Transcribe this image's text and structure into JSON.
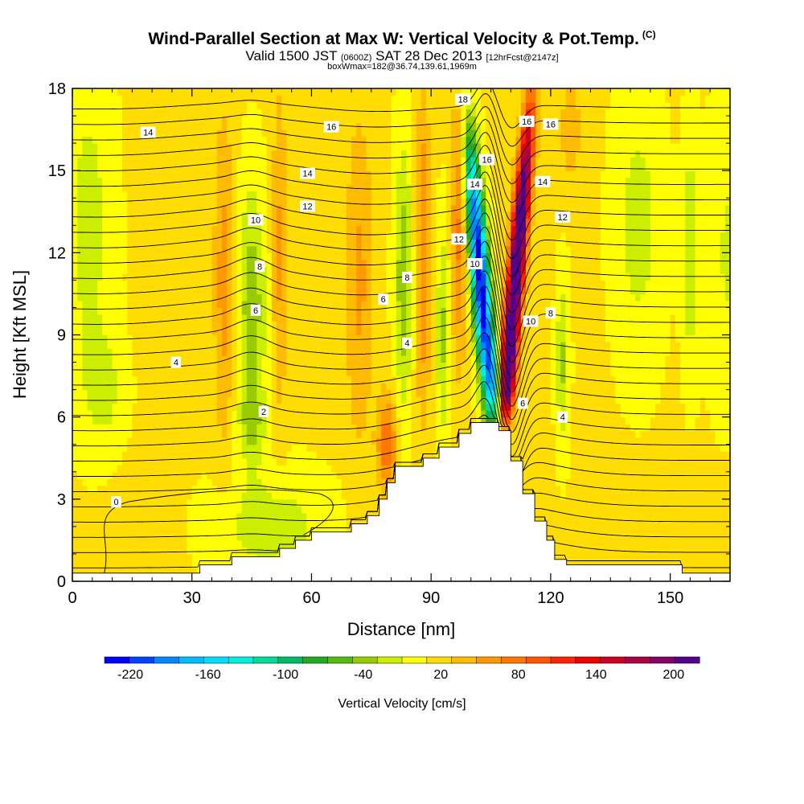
{
  "header": {
    "title": "Wind-Parallel Section at Max W: Vertical Velocity & Pot.Temp.",
    "copyright": "(C)",
    "valid_prefix": "Valid 1500 JST",
    "valid_utc": "(0600Z)",
    "valid_date": "SAT 28 Dec 2013",
    "forecast": "[12hrFcst@2147z]",
    "boxinfo": "boxWmax=182@36.74,139.61,1969m"
  },
  "chart_data": {
    "type": "heatmap",
    "xlabel": "Distance [nm]",
    "ylabel": "Height [Kft MSL]",
    "xlim": [
      0,
      165
    ],
    "ylim": [
      0,
      18
    ],
    "xticks": [
      0,
      30,
      60,
      90,
      120,
      150
    ],
    "yticks": [
      0,
      3,
      6,
      9,
      12,
      15,
      18
    ],
    "colorbar": {
      "label": "Vertical Velocity [cm/s]",
      "range": [
        -240,
        220
      ],
      "tick_values": [
        -220,
        -160,
        -100,
        -40,
        20,
        80,
        140,
        200
      ],
      "colors": [
        "#0000ff",
        "#0044ff",
        "#0088ff",
        "#00bbff",
        "#00ddff",
        "#00f0e0",
        "#00dd99",
        "#00bb66",
        "#22aa22",
        "#55bb11",
        "#99cc00",
        "#ccee00",
        "#ffff00",
        "#ffdd00",
        "#ffbb00",
        "#ff9900",
        "#ff7700",
        "#ff5500",
        "#ff2200",
        "#ee0000",
        "#cc0022",
        "#aa0044",
        "#880066",
        "#550088"
      ]
    },
    "terrain": [
      [
        0,
        0.3
      ],
      [
        32,
        0.3
      ],
      [
        32,
        0.6
      ],
      [
        40,
        0.6
      ],
      [
        40,
        0.9
      ],
      [
        52,
        0.9
      ],
      [
        52,
        1.2
      ],
      [
        56,
        1.2
      ],
      [
        56,
        1.5
      ],
      [
        60,
        1.5
      ],
      [
        60,
        1.8
      ],
      [
        70,
        1.8
      ],
      [
        70,
        2.1
      ],
      [
        74,
        2.1
      ],
      [
        74,
        2.4
      ],
      [
        77,
        2.4
      ],
      [
        77,
        3.0
      ],
      [
        79,
        3.0
      ],
      [
        79,
        3.6
      ],
      [
        81,
        3.6
      ],
      [
        81,
        4.2
      ],
      [
        88,
        4.2
      ],
      [
        88,
        4.5
      ],
      [
        92,
        4.5
      ],
      [
        92,
        4.9
      ],
      [
        97,
        4.9
      ],
      [
        97,
        5.4
      ],
      [
        100,
        5.4
      ],
      [
        100,
        5.8
      ],
      [
        107,
        5.8
      ],
      [
        107,
        5.5
      ],
      [
        110,
        5.5
      ],
      [
        110,
        4.4
      ],
      [
        113,
        4.4
      ],
      [
        113,
        3.2
      ],
      [
        116,
        3.2
      ],
      [
        116,
        2.2
      ],
      [
        119,
        2.2
      ],
      [
        119,
        1.5
      ],
      [
        121,
        1.5
      ],
      [
        121,
        0.8
      ],
      [
        124,
        0.8
      ],
      [
        124,
        0.6
      ],
      [
        129,
        0.6
      ],
      [
        129,
        0.6
      ],
      [
        153,
        0.6
      ],
      [
        153,
        0.3
      ],
      [
        165,
        0.3
      ]
    ],
    "potential_temperature_contours": [
      {
        "value": 0,
        "label_at": [
          11,
          2.9
        ]
      },
      {
        "value": 2,
        "label_at": [
          48,
          6.2
        ]
      },
      {
        "value": 4,
        "label_at": [
          26,
          8.0
        ]
      },
      {
        "value": 4,
        "label_at": [
          84,
          8.7
        ]
      },
      {
        "value": 4,
        "label_at": [
          123,
          6.0
        ]
      },
      {
        "value": 6,
        "label_at": [
          46,
          9.9
        ]
      },
      {
        "value": 6,
        "label_at": [
          78,
          10.3
        ]
      },
      {
        "value": 6,
        "label_at": [
          113,
          6.5
        ]
      },
      {
        "value": 8,
        "label_at": [
          47,
          11.5
        ]
      },
      {
        "value": 8,
        "label_at": [
          84,
          11.1
        ]
      },
      {
        "value": 8,
        "label_at": [
          120,
          9.8
        ]
      },
      {
        "value": 10,
        "label_at": [
          46,
          13.2
        ]
      },
      {
        "value": 10,
        "label_at": [
          101,
          11.6
        ]
      },
      {
        "value": 10,
        "label_at": [
          115,
          9.5
        ]
      },
      {
        "value": 12,
        "label_at": [
          59,
          13.7
        ]
      },
      {
        "value": 12,
        "label_at": [
          97,
          12.5
        ]
      },
      {
        "value": 12,
        "label_at": [
          123,
          13.3
        ]
      },
      {
        "value": 14,
        "label_at": [
          19,
          16.4
        ]
      },
      {
        "value": 14,
        "label_at": [
          59,
          14.9
        ]
      },
      {
        "value": 14,
        "label_at": [
          101,
          14.5
        ]
      },
      {
        "value": 14,
        "label_at": [
          118,
          14.6
        ]
      },
      {
        "value": 16,
        "label_at": [
          65,
          16.6
        ]
      },
      {
        "value": 16,
        "label_at": [
          104,
          15.4
        ]
      },
      {
        "value": 16,
        "label_at": [
          114,
          16.8
        ]
      },
      {
        "value": 16,
        "label_at": [
          120,
          16.7
        ]
      },
      {
        "value": 18,
        "label_at": [
          98,
          17.6
        ]
      }
    ],
    "velocity_features": [
      {
        "center": [
          107,
          10
        ],
        "value": -220
      },
      {
        "center": [
          114,
          13
        ],
        "value": 180
      },
      {
        "center": [
          46,
          10
        ],
        "value": -50
      },
      {
        "center": [
          83,
          11
        ],
        "value": -50
      },
      {
        "center": [
          94,
          9
        ],
        "value": -40
      },
      {
        "center": [
          37,
          12
        ],
        "value": 60
      },
      {
        "center": [
          79,
          5
        ],
        "value": 70
      }
    ]
  }
}
